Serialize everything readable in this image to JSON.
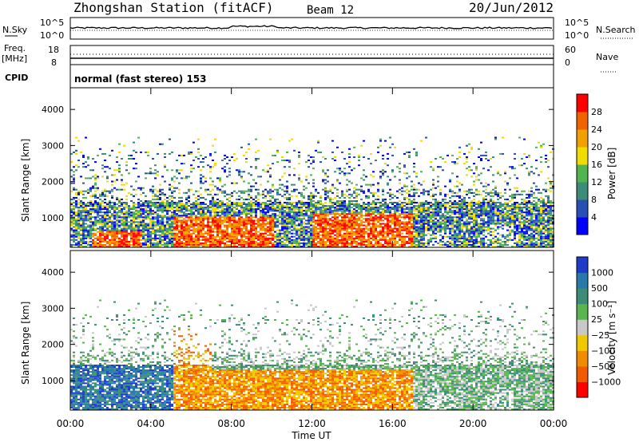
{
  "header": {
    "station": "Zhongshan Station (fitACF)",
    "beam": "Beam 12",
    "date": "20/Jun/2012"
  },
  "status_panels": {
    "nsky_label": "N.Sky",
    "nsky_ticks": [
      "10^5",
      "10^0"
    ],
    "nsearch_label": "N.Search",
    "nsearch_ticks": [
      "10^5",
      "10^0"
    ],
    "freq_label": "Freq.",
    "freq_unit": "[MHz]",
    "freq_ticks": [
      "18",
      "8"
    ],
    "nave_label": "Nave",
    "nave_ticks": [
      "60",
      "0"
    ],
    "cpid_label": "CPID",
    "cpid_text": "normal (fast stereo) 153"
  },
  "chart_data": [
    {
      "type": "heatmap",
      "name": "power",
      "ylabel": "Slant Range [km]",
      "ylim": [
        180,
        4600
      ],
      "yticks": [
        "1000",
        "2000",
        "3000",
        "4000"
      ],
      "colorbar_label": "Power [dB]",
      "colorbar_ticks": [
        "4",
        "8",
        "12",
        "16",
        "20",
        "24",
        "28"
      ],
      "colors": [
        "#0000ff",
        "#2850b4",
        "#3c8c78",
        "#50b450",
        "#f0dc00",
        "#f0a000",
        "#f06400",
        "#ff0000"
      ],
      "clim": [
        0,
        30
      ]
    },
    {
      "type": "heatmap",
      "name": "velocity",
      "ylabel": "Slant Range [km]",
      "ylim": [
        180,
        4600
      ],
      "yticks": [
        "1000",
        "2000",
        "3000",
        "4000"
      ],
      "colorbar_label": "Velocity [m s⁻¹]",
      "colorbar_ticks": [
        "1000",
        "500",
        "100",
        "25",
        "−25",
        "−100",
        "−500",
        "−1000"
      ],
      "colors": [
        "#1e3cc8",
        "#2878aa",
        "#3c8c78",
        "#5ab450",
        "#c8c8c8",
        "#f0c800",
        "#f08c00",
        "#f05a00",
        "#ff0000"
      ]
    }
  ],
  "xaxis": {
    "label": "Time UT",
    "ticks": [
      "00:00",
      "04:00",
      "08:00",
      "12:00",
      "16:00",
      "20:00",
      "00:00"
    ],
    "range_hours": [
      0,
      24
    ]
  }
}
